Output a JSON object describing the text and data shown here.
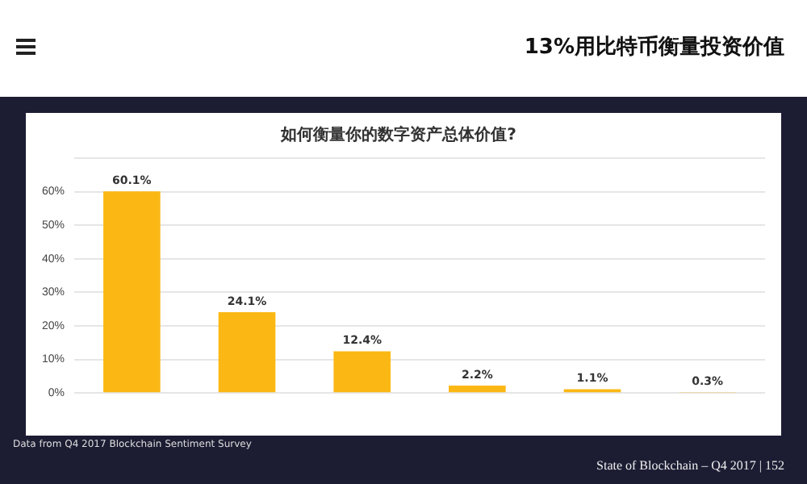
{
  "chart_data": {
    "type": "bar",
    "title": "如何衡量你的数字资产总体价值?",
    "categories": [
      null,
      null,
      null,
      null,
      null,
      null
    ],
    "values": [
      60.1,
      24.1,
      12.4,
      2.2,
      1.1,
      0.3
    ],
    "value_labels": [
      "60.1%",
      "24.1%",
      "12.4%",
      "2.2%",
      "1.1%",
      "0.3%"
    ],
    "color": "#fbb814",
    "ylim": [
      0,
      70
    ],
    "yticks": [
      {
        "value": 0,
        "label": "0%"
      },
      {
        "value": 10,
        "label": "10%"
      },
      {
        "value": 20,
        "label": "20%"
      },
      {
        "value": 30,
        "label": "30%"
      },
      {
        "value": 40,
        "label": "40%"
      },
      {
        "value": 50,
        "label": "50%"
      },
      {
        "value": 60,
        "label": "60%"
      },
      {
        "value": 70,
        "label": null
      }
    ],
    "grid": "y",
    "annotations": [
      "13%用比特币衡量投资价值",
      "Data from Q4 2017 Blockchain Sentiment Survey",
      "State of Blockchain – Q4 2017 | 152"
    ]
  }
}
